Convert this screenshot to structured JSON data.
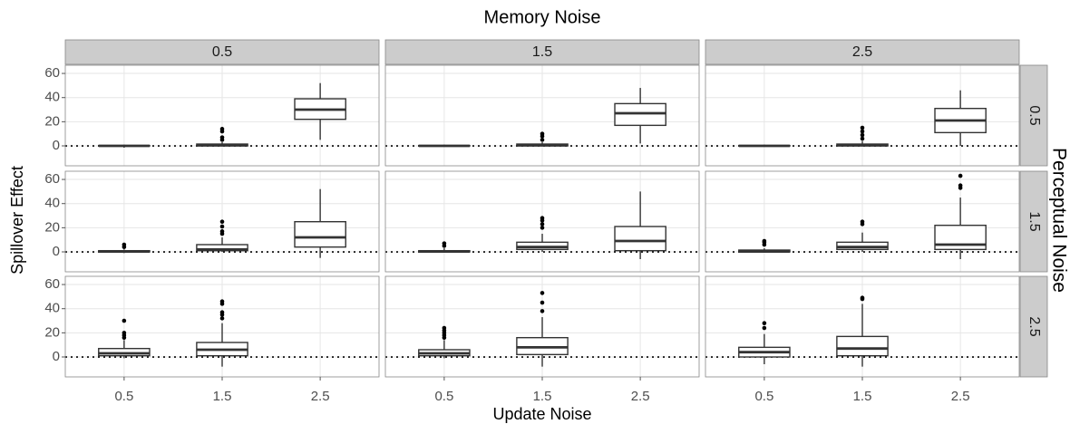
{
  "chart_data": {
    "type": "box",
    "title": "Memory Noise",
    "xlabel": "Update Noise",
    "ylabel": "Spillover Effect",
    "row_title": "Perceptual Noise",
    "facet_cols": [
      "0.5",
      "1.5",
      "2.5"
    ],
    "facet_rows": [
      "0.5",
      "1.5",
      "2.5"
    ],
    "categories": [
      "0.5",
      "1.5",
      "2.5"
    ],
    "ylim": [
      -16.5,
      66.8
    ],
    "yticks": [
      0,
      20,
      40,
      60
    ],
    "hline": 0,
    "grid": true,
    "color": "#333333",
    "panels": [
      [
        [
          {
            "whislo": -1.5,
            "q1": 0,
            "med": 0,
            "q3": 0.3,
            "whishi": 1,
            "fliers": []
          },
          {
            "whislo": 0,
            "q1": 0,
            "med": 0.5,
            "q3": 1.5,
            "whishi": 3,
            "fliers": [
              5,
              7,
              12,
              14
            ]
          },
          {
            "whislo": 5,
            "q1": 22,
            "med": 30,
            "q3": 39,
            "whishi": 52,
            "fliers": []
          }
        ],
        [
          {
            "whislo": -0.5,
            "q1": 0,
            "med": 0,
            "q3": 0.3,
            "whishi": 1,
            "fliers": []
          },
          {
            "whislo": 0,
            "q1": 0,
            "med": 0.5,
            "q3": 1.5,
            "whishi": 3,
            "fliers": [
              5,
              8,
              10
            ]
          },
          {
            "whislo": 2,
            "q1": 17,
            "med": 27,
            "q3": 35,
            "whishi": 48,
            "fliers": []
          }
        ],
        [
          {
            "whislo": -0.5,
            "q1": 0,
            "med": 0,
            "q3": 0.3,
            "whishi": 1,
            "fliers": []
          },
          {
            "whislo": 0,
            "q1": 0,
            "med": 0.5,
            "q3": 1.5,
            "whishi": 4,
            "fliers": [
              6,
              9,
              12,
              15
            ]
          },
          {
            "whislo": 0,
            "q1": 11,
            "med": 21,
            "q3": 31,
            "whishi": 46,
            "fliers": []
          }
        ]
      ],
      [
        [
          {
            "whislo": -1,
            "q1": 0,
            "med": 0.3,
            "q3": 1,
            "whishi": 2,
            "fliers": [
              4,
              6
            ]
          },
          {
            "whislo": 0,
            "q1": 1,
            "med": 2,
            "q3": 6,
            "whishi": 12,
            "fliers": [
              15,
              17,
              21,
              25
            ]
          },
          {
            "whislo": -5,
            "q1": 4,
            "med": 12,
            "q3": 25,
            "whishi": 52,
            "fliers": []
          }
        ],
        [
          {
            "whislo": -0.5,
            "q1": 0,
            "med": 0.3,
            "q3": 1,
            "whishi": 3,
            "fliers": [
              5,
              7
            ]
          },
          {
            "whislo": 0,
            "q1": 2,
            "med": 4,
            "q3": 8,
            "whishi": 15,
            "fliers": [
              20,
              23,
              26,
              28
            ]
          },
          {
            "whislo": -6,
            "q1": 1,
            "med": 9,
            "q3": 21,
            "whishi": 50,
            "fliers": []
          }
        ],
        [
          {
            "whislo": -0.5,
            "q1": 0,
            "med": 0.3,
            "q3": 1.5,
            "whishi": 3,
            "fliers": [
              6,
              8,
              9
            ]
          },
          {
            "whislo": 0,
            "q1": 2,
            "med": 4,
            "q3": 8,
            "whishi": 16,
            "fliers": [
              23,
              25
            ]
          },
          {
            "whislo": -6,
            "q1": 2,
            "med": 6,
            "q3": 22,
            "whishi": 45,
            "fliers": [
              53,
              55,
              63
            ]
          }
        ]
      ],
      [
        [
          {
            "whislo": -1,
            "q1": 1,
            "med": 3,
            "q3": 7,
            "whishi": 14,
            "fliers": [
              16,
              18,
              20,
              30
            ]
          },
          {
            "whislo": -8,
            "q1": 1,
            "med": 6,
            "q3": 12,
            "whishi": 28,
            "fliers": [
              32,
              35,
              37,
              44,
              46
            ]
          },
          null
        ],
        [
          {
            "whislo": -1,
            "q1": 1,
            "med": 3,
            "q3": 6,
            "whishi": 14,
            "fliers": [
              16,
              18,
              20,
              22,
              24
            ]
          },
          {
            "whislo": -8,
            "q1": 2,
            "med": 8,
            "q3": 16,
            "whishi": 33,
            "fliers": [
              38,
              45,
              53
            ]
          },
          null
        ],
        [
          {
            "whislo": -6,
            "q1": 0,
            "med": 4,
            "q3": 8,
            "whishi": 19,
            "fliers": [
              24,
              28
            ]
          },
          {
            "whislo": -8,
            "q1": 1,
            "med": 7,
            "q3": 17,
            "whishi": 44,
            "fliers": [
              48,
              49
            ]
          },
          null
        ]
      ]
    ]
  }
}
